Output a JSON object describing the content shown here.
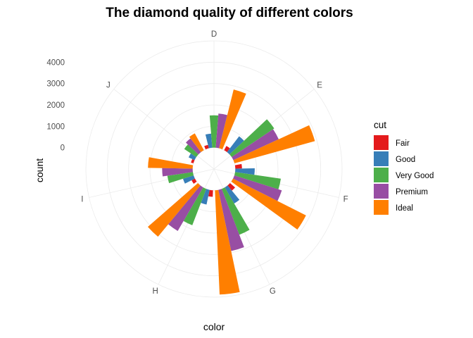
{
  "chart_data": {
    "type": "bar",
    "coord": "polar",
    "title": "The diamond quality of different colors",
    "xlabel": "color",
    "ylabel": "count",
    "categories": [
      "D",
      "E",
      "F",
      "G",
      "H",
      "I",
      "J"
    ],
    "y_ticks": [
      0,
      1000,
      2000,
      3000,
      4000
    ],
    "ylim": [
      -1000,
      5000
    ],
    "grid": true,
    "position": "dodge",
    "legend": {
      "title": "cut",
      "placement": "right"
    },
    "series": [
      {
        "name": "Fair",
        "color": "#E41A1C",
        "values": [
          163,
          224,
          312,
          314,
          303,
          175,
          119
        ]
      },
      {
        "name": "Good",
        "color": "#377EB8",
        "values": [
          662,
          933,
          909,
          871,
          702,
          522,
          307
        ]
      },
      {
        "name": "Very Good",
        "color": "#4DAF4A",
        "values": [
          1513,
          2400,
          2164,
          2299,
          1824,
          1204,
          678
        ]
      },
      {
        "name": "Premium",
        "color": "#984EA3",
        "values": [
          1603,
          2337,
          2331,
          2924,
          2360,
          1428,
          808
        ]
      },
      {
        "name": "Ideal",
        "color": "#FF7F00",
        "values": [
          2834,
          3903,
          3826,
          4884,
          3115,
          2093,
          896
        ]
      }
    ]
  }
}
